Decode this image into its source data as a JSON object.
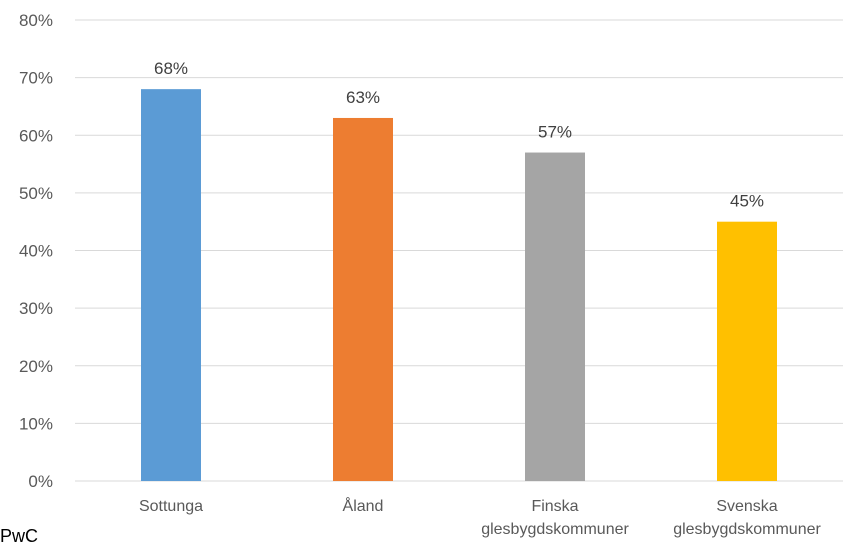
{
  "chart_data": {
    "type": "bar",
    "categories": [
      [
        "Sottunga"
      ],
      [
        "Åland"
      ],
      [
        "Finska",
        "glesbygdskommuner"
      ],
      [
        "Svenska",
        "glesbygdskommuner"
      ]
    ],
    "values": [
      68,
      63,
      57,
      45
    ],
    "data_labels": [
      "68%",
      "63%",
      "57%",
      "45%"
    ],
    "colors": [
      "#5B9BD5",
      "#ED7D31",
      "#A5A5A5",
      "#FFC000"
    ],
    "ylim": [
      0,
      80
    ],
    "yticks": [
      0,
      10,
      20,
      30,
      40,
      50,
      60,
      70,
      80
    ],
    "ytick_labels": [
      "0%",
      "10%",
      "20%",
      "30%",
      "40%",
      "50%",
      "60%",
      "70%",
      "80%"
    ],
    "grid": true,
    "legend": "none"
  },
  "source_text": "PwC"
}
